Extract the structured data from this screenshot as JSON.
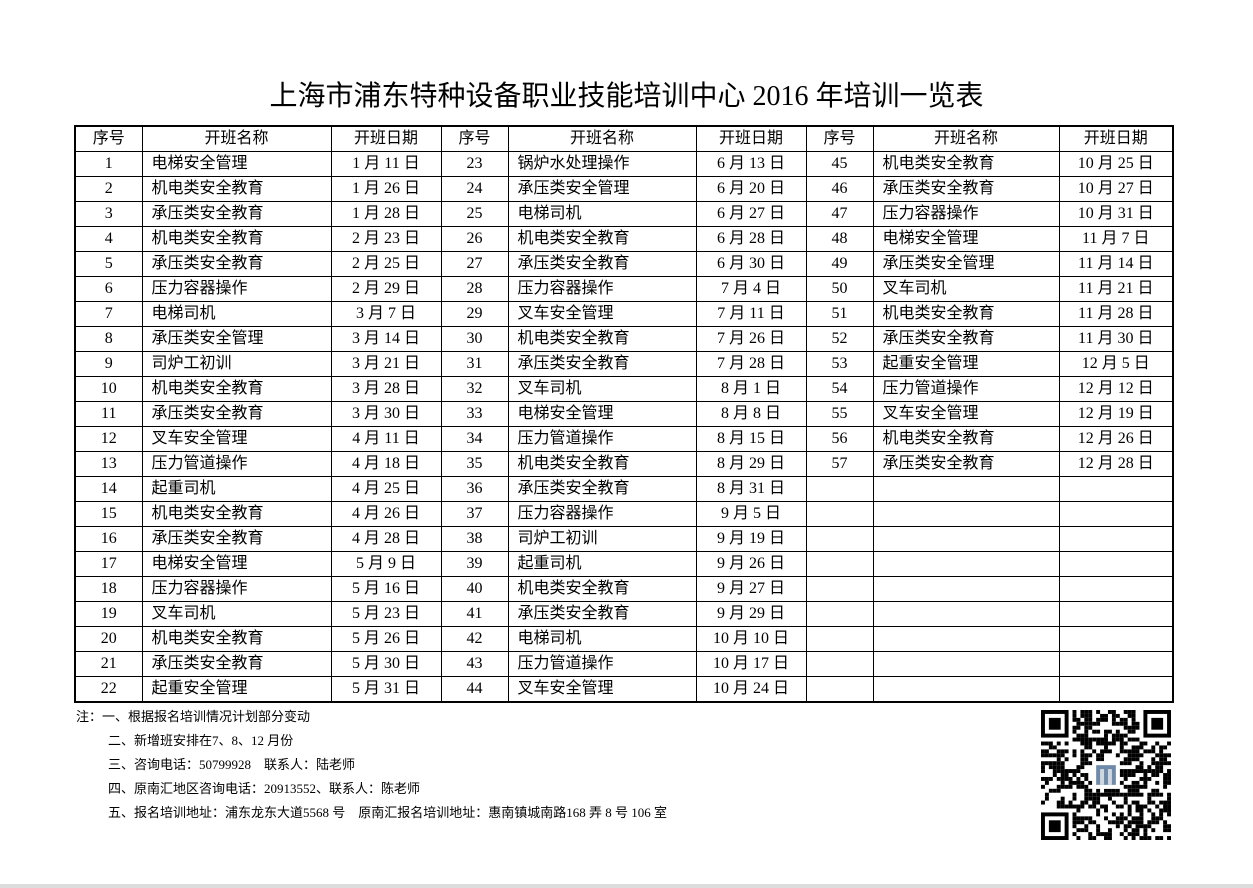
{
  "title": "上海市浦东特种设备职业技能培训中心 2016 年培训一览表",
  "headers": [
    "序号",
    "开班名称",
    "开班日期",
    "序号",
    "开班名称",
    "开班日期",
    "序号",
    "开班名称",
    "开班日期"
  ],
  "rows": [
    [
      "1",
      "电梯安全管理",
      "1 月 11 日",
      "23",
      "锅炉水处理操作",
      "6 月 13 日",
      "45",
      "机电类安全教育",
      "10 月 25 日"
    ],
    [
      "2",
      "机电类安全教育",
      "1 月 26 日",
      "24",
      "承压类安全管理",
      "6 月 20 日",
      "46",
      "承压类安全教育",
      "10 月 27 日"
    ],
    [
      "3",
      "承压类安全教育",
      "1 月 28 日",
      "25",
      "电梯司机",
      "6 月 27 日",
      "47",
      "压力容器操作",
      "10 月 31 日"
    ],
    [
      "4",
      "机电类安全教育",
      "2 月 23 日",
      "26",
      "机电类安全教育",
      "6 月 28 日",
      "48",
      "电梯安全管理",
      "11 月 7 日"
    ],
    [
      "5",
      "承压类安全教育",
      "2 月 25 日",
      "27",
      "承压类安全教育",
      "6 月 30 日",
      "49",
      "承压类安全管理",
      "11 月 14 日"
    ],
    [
      "6",
      "压力容器操作",
      "2 月 29 日",
      "28",
      "压力容器操作",
      "7 月 4 日",
      "50",
      "叉车司机",
      "11 月 21 日"
    ],
    [
      "7",
      "电梯司机",
      "3 月 7 日",
      "29",
      "叉车安全管理",
      "7 月 11 日",
      "51",
      "机电类安全教育",
      "11 月 28 日"
    ],
    [
      "8",
      "承压类安全管理",
      "3 月 14 日",
      "30",
      "机电类安全教育",
      "7 月 26 日",
      "52",
      "承压类安全教育",
      "11 月 30 日"
    ],
    [
      "9",
      "司炉工初训",
      "3 月 21 日",
      "31",
      "承压类安全教育",
      "7 月 28 日",
      "53",
      "起重安全管理",
      "12 月 5 日"
    ],
    [
      "10",
      "机电类安全教育",
      "3 月 28 日",
      "32",
      "叉车司机",
      "8 月 1 日",
      "54",
      "压力管道操作",
      "12 月 12 日"
    ],
    [
      "11",
      "承压类安全教育",
      "3 月 30 日",
      "33",
      "电梯安全管理",
      "8 月 8 日",
      "55",
      "叉车安全管理",
      "12 月 19 日"
    ],
    [
      "12",
      "叉车安全管理",
      "4 月 11 日",
      "34",
      "压力管道操作",
      "8 月 15 日",
      "56",
      "机电类安全教育",
      "12 月 26 日"
    ],
    [
      "13",
      "压力管道操作",
      "4 月 18 日",
      "35",
      "机电类安全教育",
      "8 月 29 日",
      "57",
      "承压类安全教育",
      "12 月 28 日"
    ],
    [
      "14",
      "起重司机",
      "4 月 25 日",
      "36",
      "承压类安全教育",
      "8 月 31 日",
      "",
      "",
      ""
    ],
    [
      "15",
      "机电类安全教育",
      "4 月 26 日",
      "37",
      "压力容器操作",
      "9 月 5 日",
      "",
      "",
      ""
    ],
    [
      "16",
      "承压类安全教育",
      "4 月 28 日",
      "38",
      "司炉工初训",
      "9 月 19 日",
      "",
      "",
      ""
    ],
    [
      "17",
      "电梯安全管理",
      "5 月 9 日",
      "39",
      "起重司机",
      "9 月 26 日",
      "",
      "",
      ""
    ],
    [
      "18",
      "压力容器操作",
      "5 月 16 日",
      "40",
      "机电类安全教育",
      "9 月 27 日",
      "",
      "",
      ""
    ],
    [
      "19",
      "叉车司机",
      "5 月 23 日",
      "41",
      "承压类安全教育",
      "9 月 29 日",
      "",
      "",
      ""
    ],
    [
      "20",
      "机电类安全教育",
      "5 月 26 日",
      "42",
      "电梯司机",
      "10 月 10 日",
      "",
      "",
      ""
    ],
    [
      "21",
      "承压类安全教育",
      "5 月 30 日",
      "43",
      "压力管道操作",
      "10 月 17 日",
      "",
      "",
      ""
    ],
    [
      "22",
      "起重安全管理",
      "5 月 31 日",
      "44",
      "叉车安全管理",
      "10 月 24 日",
      "",
      "",
      ""
    ]
  ],
  "notes": [
    "注：一、根据报名培训情况计划部分变动",
    "二、新增班安排在7、8、12 月份",
    "三、咨询电话：50799928　联系人：陆老师",
    "四、原南汇地区咨询电话：20913552、联系人：陈老师",
    "五、报名培训地址：浦东龙东大道5568 号　原南汇报名培训地址：惠南镇城南路168 弄 8 号 106 室"
  ],
  "qr_icon": "qr-code"
}
